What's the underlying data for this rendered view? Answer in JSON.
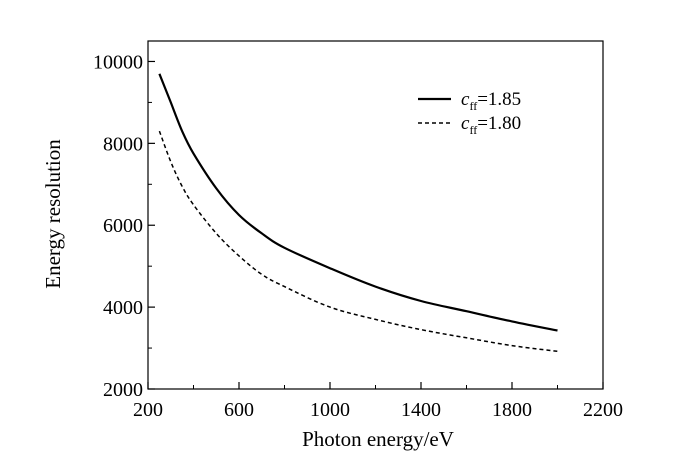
{
  "chart_data": {
    "type": "line",
    "xlabel": "Photon energy/eV",
    "ylabel": "Energy resolution",
    "xlim": [
      200,
      2200
    ],
    "ylim": [
      2000,
      10500
    ],
    "xticks": [
      "200",
      "600",
      "1000",
      "1400",
      "1800",
      "2200"
    ],
    "yticks": [
      "2000",
      "4000",
      "6000",
      "8000",
      "10000"
    ],
    "grid": false,
    "legend_position": "top-right",
    "series": [
      {
        "name": "c_ff = 1.85",
        "legend": {
          "symbol": "c",
          "sub": "ff",
          "value": "=1.85"
        },
        "style": "solid",
        "x": [
          250,
          300,
          350,
          400,
          500,
          600,
          700,
          800,
          1000,
          1200,
          1400,
          1600,
          1800,
          2000
        ],
        "y": [
          9700,
          9000,
          8300,
          7750,
          6900,
          6250,
          5800,
          5450,
          4950,
          4500,
          4150,
          3900,
          3650,
          3430
        ]
      },
      {
        "name": "c_ff = 1.80",
        "legend": {
          "symbol": "c",
          "sub": "ff",
          "value": "=1.80"
        },
        "style": "dashed",
        "x": [
          250,
          300,
          350,
          400,
          500,
          600,
          700,
          800,
          1000,
          1200,
          1400,
          1600,
          1800,
          2000
        ],
        "y": [
          8300,
          7550,
          6950,
          6500,
          5800,
          5250,
          4800,
          4500,
          4000,
          3700,
          3450,
          3250,
          3060,
          2920
        ]
      }
    ]
  }
}
